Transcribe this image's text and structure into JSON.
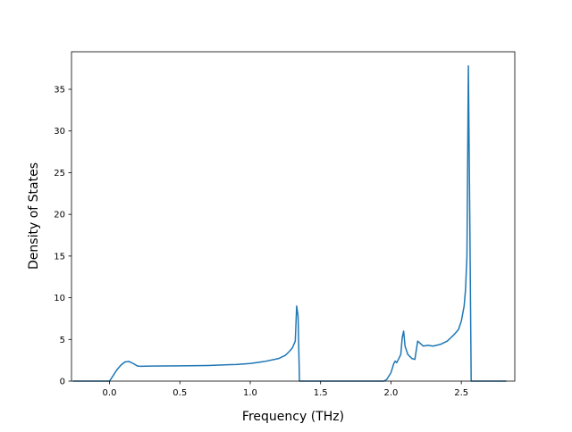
{
  "chart_data": {
    "type": "line",
    "title": "",
    "xlabel": "Frequency (THz)",
    "ylabel": "Density of States",
    "xlim": [
      -0.27,
      2.88
    ],
    "ylim": [
      0,
      39.5
    ],
    "x_ticks": [
      0.0,
      0.5,
      1.0,
      1.5,
      2.0,
      2.5
    ],
    "x_tick_labels": [
      "0.0",
      "0.5",
      "1.0",
      "1.5",
      "2.0",
      "2.5"
    ],
    "y_ticks": [
      0,
      5,
      10,
      15,
      20,
      25,
      30,
      35
    ],
    "y_tick_labels": [
      "0",
      "5",
      "10",
      "15",
      "20",
      "25",
      "30",
      "35"
    ],
    "grid": false,
    "legend": "none",
    "series": [
      {
        "color": "#1f77b4",
        "x": [
          -0.26,
          -0.1,
          0.0,
          0.02,
          0.05,
          0.08,
          0.11,
          0.14,
          0.17,
          0.2,
          0.22,
          0.3,
          0.5,
          0.7,
          0.9,
          1.0,
          1.1,
          1.2,
          1.25,
          1.28,
          1.3,
          1.32,
          1.33,
          1.34,
          1.35,
          1.36,
          1.38,
          1.6,
          1.8,
          1.95,
          1.97,
          2.0,
          2.02,
          2.03,
          2.04,
          2.05,
          2.07,
          2.08,
          2.09,
          2.1,
          2.12,
          2.15,
          2.17,
          2.19,
          2.21,
          2.23,
          2.26,
          2.3,
          2.35,
          2.4,
          2.45,
          2.48,
          2.5,
          2.52,
          2.53,
          2.54,
          2.55,
          2.56,
          2.57,
          2.6,
          2.82
        ],
        "y": [
          0,
          0,
          0,
          0.5,
          1.3,
          1.9,
          2.3,
          2.35,
          2.1,
          1.8,
          1.78,
          1.8,
          1.83,
          1.88,
          2.0,
          2.12,
          2.35,
          2.7,
          3.1,
          3.6,
          4.0,
          4.8,
          9.0,
          7.8,
          0,
          0,
          0,
          0,
          0,
          0,
          0.2,
          1.0,
          2.1,
          2.4,
          2.2,
          2.5,
          3.2,
          5.2,
          6.0,
          4.2,
          3.2,
          2.7,
          2.6,
          4.8,
          4.5,
          4.2,
          4.3,
          4.2,
          4.4,
          4.8,
          5.6,
          6.2,
          7.2,
          9.0,
          11.0,
          15.0,
          37.8,
          20.0,
          0,
          0,
          0
        ]
      }
    ]
  }
}
